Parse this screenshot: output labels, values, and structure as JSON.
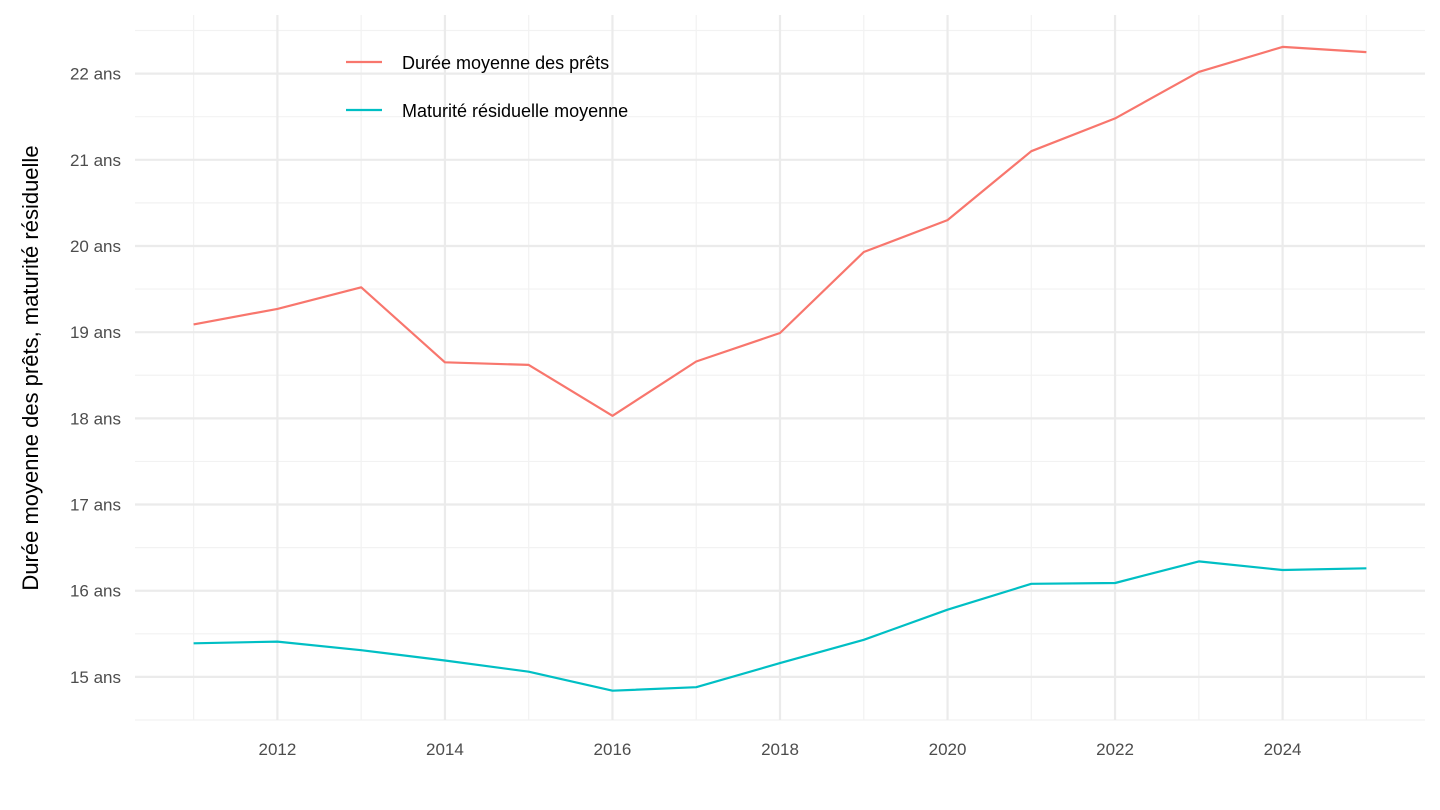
{
  "chart_data": {
    "type": "line",
    "title": "",
    "xlabel": "",
    "ylabel": "Durée moyenne des prêts, maturité résiduelle",
    "x": [
      2011,
      2012,
      2013,
      2014,
      2015,
      2016,
      2017,
      2018,
      2019,
      2020,
      2021,
      2022,
      2023,
      2024,
      2025
    ],
    "xlim": [
      2010.3,
      2025.7
    ],
    "ylim": [
      14.5,
      22.68
    ],
    "x_ticks": [
      2012,
      2014,
      2016,
      2018,
      2020,
      2022,
      2024
    ],
    "x_tick_labels": [
      "2012",
      "2014",
      "2016",
      "2018",
      "2020",
      "2022",
      "2024"
    ],
    "y_ticks": [
      15,
      16,
      17,
      18,
      19,
      20,
      21,
      22
    ],
    "y_tick_labels": [
      "15 ans",
      "16 ans",
      "17 ans",
      "18 ans",
      "19 ans",
      "20 ans",
      "21 ans",
      "22 ans"
    ],
    "grid": true,
    "legend_position": "top-left",
    "series": [
      {
        "name": "Durée moyenne des prêts",
        "color": "#F8766D",
        "values": [
          19.09,
          19.27,
          19.52,
          18.65,
          18.62,
          18.03,
          18.66,
          18.99,
          19.93,
          20.3,
          21.1,
          21.48,
          22.02,
          22.31,
          22.25
        ]
      },
      {
        "name": "Maturité résiduelle moyenne",
        "color": "#00BFC4",
        "values": [
          15.39,
          15.41,
          15.31,
          15.19,
          15.06,
          14.84,
          14.88,
          15.16,
          15.43,
          15.78,
          16.08,
          16.09,
          16.34,
          16.24,
          16.26
        ]
      }
    ]
  }
}
